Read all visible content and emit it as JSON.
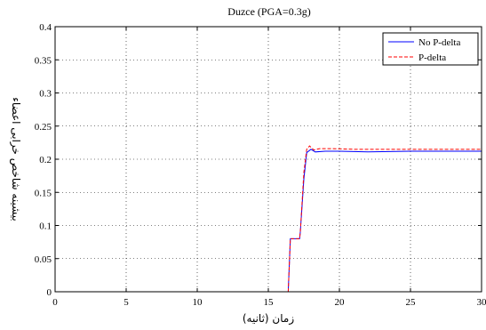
{
  "chart_data": {
    "type": "line",
    "title": "Duzce (PGA=0.3g)",
    "xlabel": "زمان (ثانیه)",
    "ylabel": "بیشینه شاخص خرابی اعضاء",
    "xlim": [
      0,
      30
    ],
    "ylim": [
      0,
      0.4
    ],
    "xticks": [
      0,
      5,
      10,
      15,
      20,
      25,
      30
    ],
    "yticks": [
      0,
      0.05,
      0.1,
      0.15,
      0.2,
      0.25,
      0.3,
      0.35,
      0.4
    ],
    "xtick_labels": [
      "0",
      "5",
      "10",
      "15",
      "20",
      "25",
      "30"
    ],
    "ytick_labels": [
      "0",
      "0.05",
      "0.1",
      "0.15",
      "0.2",
      "0.25",
      "0.3",
      "0.35",
      "0.4"
    ],
    "grid": true,
    "legend_position": "top-right",
    "series": [
      {
        "name": "No P-delta",
        "color": "#0000ff",
        "style": "solid",
        "x": [
          16.4,
          16.55,
          16.6,
          17.2,
          17.25,
          17.5,
          17.7,
          18.0,
          18.3,
          19.0,
          20.0,
          22.0,
          25.0,
          30.0
        ],
        "y": [
          0,
          0.08,
          0.08,
          0.08,
          0.09,
          0.17,
          0.21,
          0.215,
          0.211,
          0.212,
          0.212,
          0.211,
          0.212,
          0.212
        ]
      },
      {
        "name": "P-delta",
        "color": "#ff0000",
        "style": "dashed",
        "x": [
          16.4,
          16.55,
          16.6,
          17.2,
          17.25,
          17.5,
          17.7,
          17.9,
          18.2,
          18.6,
          19.5,
          21.0,
          25.0,
          30.0
        ],
        "y": [
          0,
          0.08,
          0.08,
          0.08,
          0.09,
          0.18,
          0.215,
          0.22,
          0.214,
          0.216,
          0.216,
          0.215,
          0.215,
          0.215
        ]
      }
    ]
  }
}
